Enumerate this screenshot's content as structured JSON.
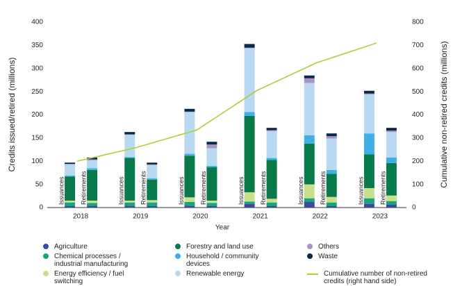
{
  "chart_data": {
    "type": "grouped-stacked-bar-line",
    "x_label": "Year",
    "y_label": "Credits issued/retired (millions)",
    "y2_label": "Cumulative non-retired credits (millions)",
    "categories": [
      "2018",
      "2019",
      "2020",
      "2021",
      "2022",
      "2023"
    ],
    "groups": [
      "Issuances",
      "Retirements"
    ],
    "ylim": [
      0,
      400
    ],
    "yticks": [
      0,
      50,
      100,
      150,
      200,
      250,
      300,
      350,
      400
    ],
    "y2lim": [
      0,
      800
    ],
    "y2ticks": [
      0,
      100,
      200,
      300,
      400,
      500,
      600,
      700,
      800
    ],
    "series": [
      {
        "name": "Agriculture",
        "color": "#3b4aa0",
        "values": [
          [
            3,
            3
          ],
          [
            3,
            3
          ],
          [
            4,
            3
          ],
          [
            8,
            3
          ],
          [
            12,
            3
          ],
          [
            8,
            6
          ]
        ]
      },
      {
        "name": "Chemical processes / industrial manufacturing",
        "color": "#17a57a",
        "values": [
          [
            8,
            7
          ],
          [
            8,
            8
          ],
          [
            8,
            7
          ],
          [
            5,
            8
          ],
          [
            8,
            8
          ],
          [
            12,
            8
          ]
        ]
      },
      {
        "name": "Energy efficiency / fuel switching",
        "color": "#c8e08c",
        "values": [
          [
            4,
            5
          ],
          [
            4,
            5
          ],
          [
            10,
            5
          ],
          [
            20,
            8
          ],
          [
            30,
            12
          ],
          [
            22,
            12
          ]
        ]
      },
      {
        "name": "Forestry and land use",
        "color": "#087a4c",
        "values": [
          [
            52,
            66
          ],
          [
            92,
            44
          ],
          [
            90,
            72
          ],
          [
            165,
            84
          ],
          [
            88,
            50
          ],
          [
            73,
            70
          ]
        ]
      },
      {
        "name": "Household / community devices",
        "color": "#3eb0e6",
        "values": [
          [
            2,
            4
          ],
          [
            2,
            3
          ],
          [
            4,
            3
          ],
          [
            8,
            4
          ],
          [
            18,
            8
          ],
          [
            45,
            12
          ]
        ]
      },
      {
        "name": "Renewable energy",
        "color": "#b9d9f1",
        "values": [
          [
            25,
            17
          ],
          [
            48,
            29
          ],
          [
            90,
            38
          ],
          [
            138,
            58
          ],
          [
            113,
            68
          ],
          [
            84,
            55
          ]
        ]
      },
      {
        "name": "Others",
        "color": "#a993c9",
        "values": [
          [
            0,
            2
          ],
          [
            1,
            1
          ],
          [
            1,
            8
          ],
          [
            1,
            2
          ],
          [
            10,
            5
          ],
          [
            2,
            3
          ]
        ]
      },
      {
        "name": "Waste",
        "color": "#0c2847",
        "values": [
          [
            3,
            4
          ],
          [
            5,
            4
          ],
          [
            6,
            6
          ],
          [
            8,
            5
          ],
          [
            6,
            6
          ],
          [
            6,
            6
          ]
        ]
      },
      {
        "name": "Cumulative number of non-retired credits (right hand side)",
        "color": "#a9cf3c",
        "axis": "y2",
        "values": [
          200,
          260,
          335,
          505,
          625,
          710
        ]
      }
    ]
  }
}
